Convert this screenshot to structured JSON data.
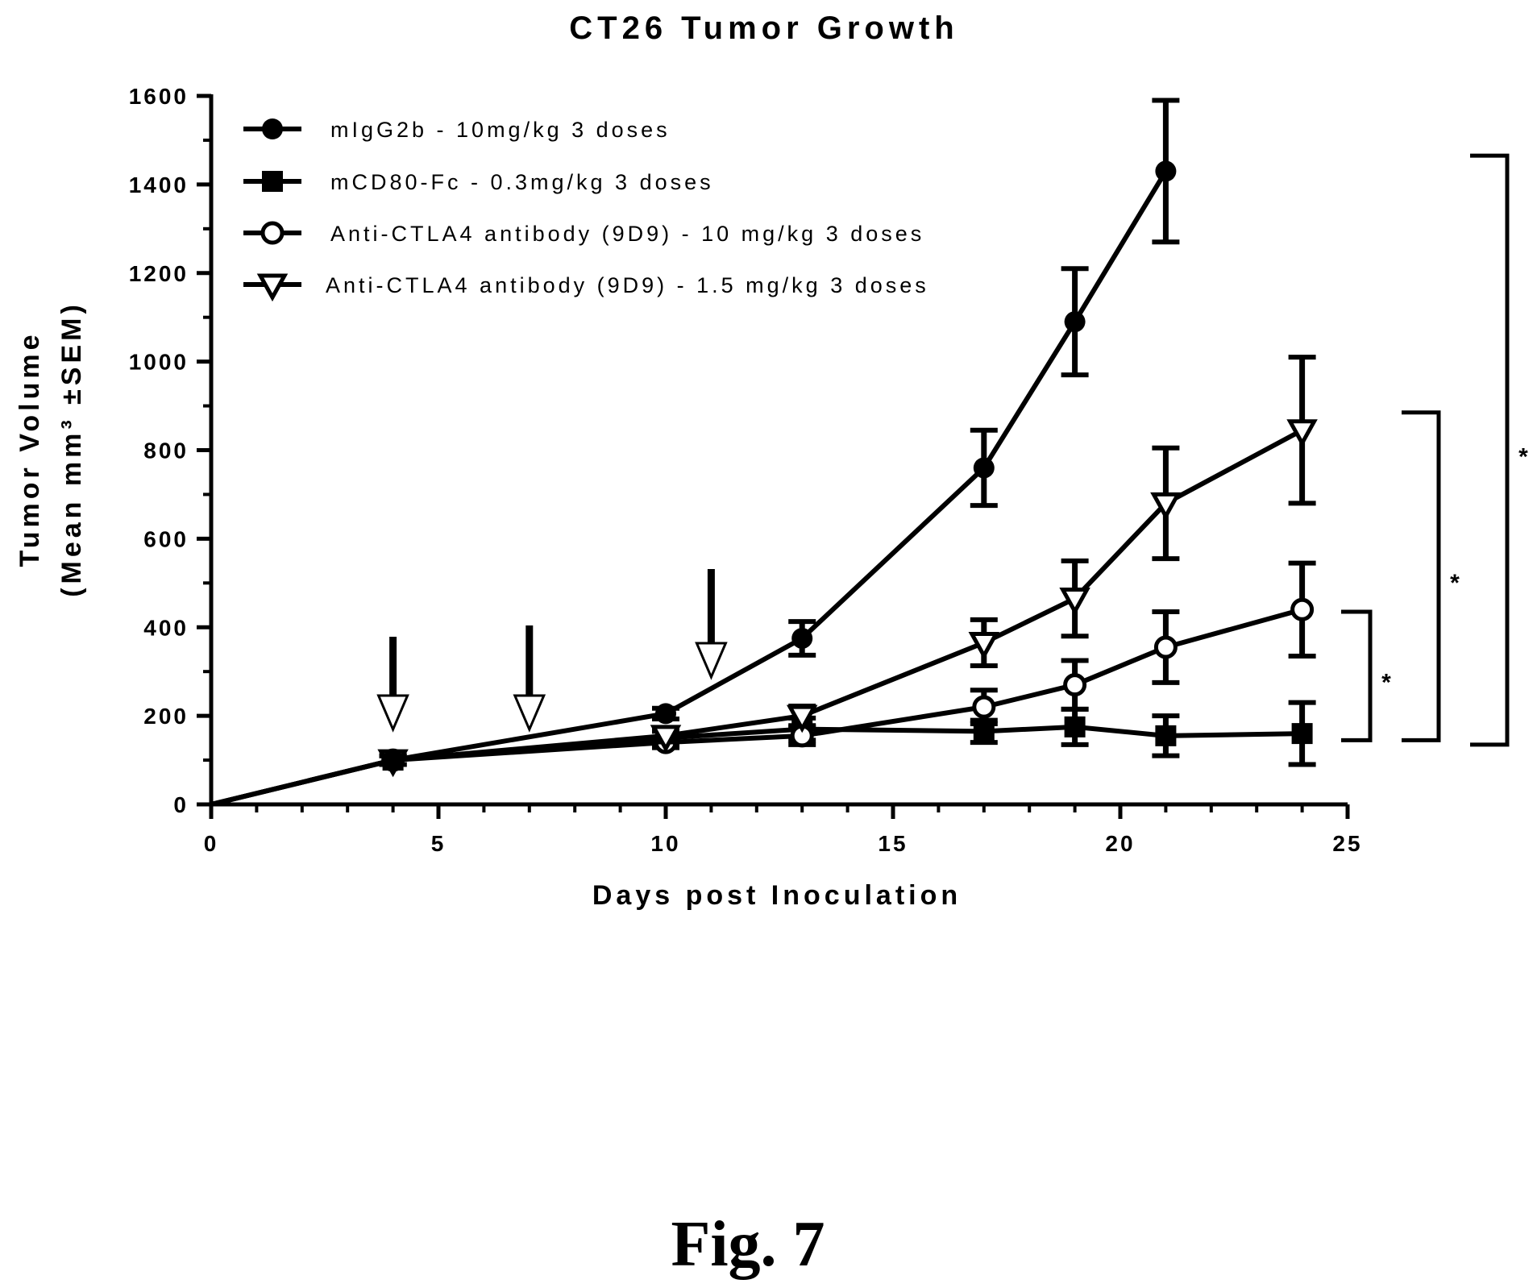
{
  "figure_caption": "Fig. 7",
  "chart_data": {
    "type": "line",
    "title": "CT26 Tumor Growth",
    "xlabel": "Days post Inoculation",
    "ylabel_line1": "Tumor Volume",
    "ylabel_line2": "(Mean mm³ ±SEM)",
    "xlim": [
      0,
      25
    ],
    "ylim": [
      0,
      1600
    ],
    "xticks": [
      0,
      5,
      10,
      15,
      20,
      25
    ],
    "yticks": [
      0,
      200,
      400,
      600,
      800,
      1000,
      1200,
      1400,
      1600
    ],
    "grid": false,
    "legend_position": "top-left",
    "series": [
      {
        "name": "mIgG2b - 10mg/kg 3 doses",
        "marker": "filled-circle",
        "x": [
          0,
          4,
          10,
          13,
          17,
          19,
          21
        ],
        "y": [
          0,
          100,
          205,
          375,
          760,
          1090,
          1430
        ],
        "err": [
          0,
          10,
          12,
          38,
          85,
          120,
          160
        ]
      },
      {
        "name": "mCD80-Fc - 0.3mg/kg 3 doses",
        "marker": "filled-square",
        "x": [
          0,
          4,
          10,
          13,
          17,
          19,
          21,
          24
        ],
        "y": [
          0,
          100,
          150,
          170,
          165,
          175,
          155,
          160
        ],
        "err": [
          0,
          10,
          15,
          25,
          25,
          40,
          45,
          70
        ]
      },
      {
        "name": "Anti-CTLA4 antibody (9D9) - 10 mg/kg 3 doses",
        "marker": "open-circle",
        "x": [
          0,
          4,
          10,
          13,
          17,
          19,
          21,
          24
        ],
        "y": [
          0,
          100,
          140,
          155,
          220,
          270,
          355,
          440
        ],
        "err": [
          0,
          10,
          12,
          20,
          38,
          55,
          80,
          105
        ]
      },
      {
        "name": "Anti-CTLA4 antibody (9D9) - 1.5 mg/kg 3 doses",
        "marker": "open-triangle-down",
        "x": [
          0,
          4,
          10,
          13,
          17,
          19,
          21,
          24
        ],
        "y": [
          0,
          100,
          155,
          200,
          365,
          465,
          680,
          845
        ],
        "err": [
          0,
          10,
          14,
          22,
          52,
          85,
          125,
          165
        ]
      }
    ],
    "dose_arrows_x": [
      4,
      7,
      11
    ],
    "significance": [
      {
        "label": "*",
        "y_top": 435,
        "y_bottom": 145
      },
      {
        "label": "*",
        "y_top": 885,
        "y_bottom": 145
      },
      {
        "label": "*",
        "y_top": 1465,
        "y_bottom": 135
      }
    ]
  }
}
